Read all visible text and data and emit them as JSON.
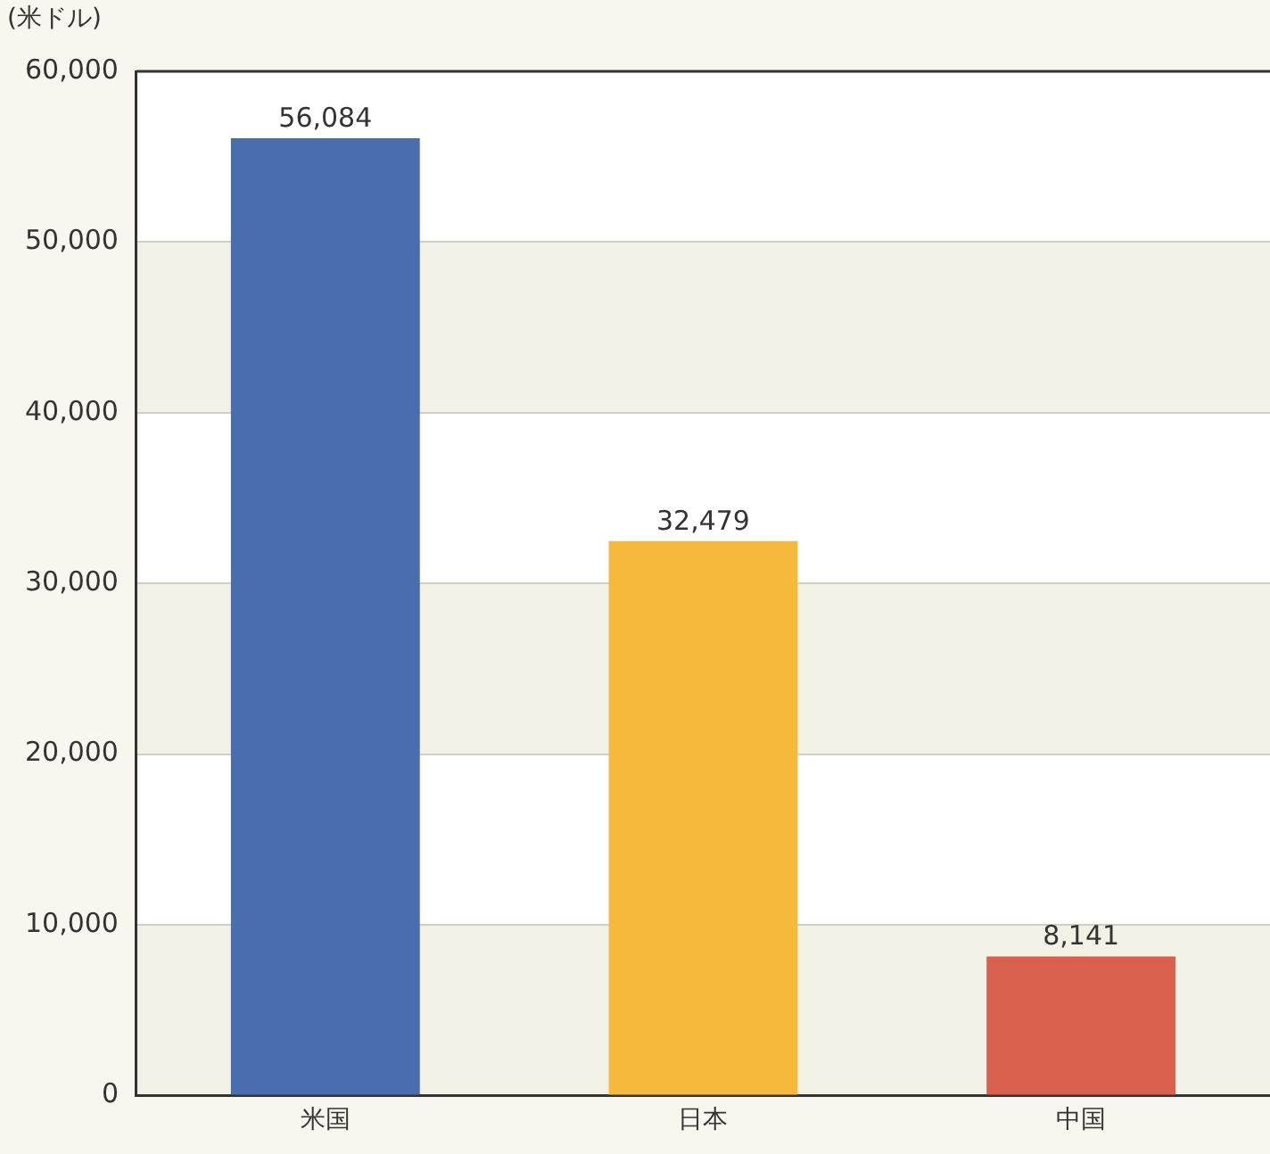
{
  "chart_data": {
    "type": "bar",
    "ylabel": "(米ドル)",
    "categories": [
      "米国",
      "日本",
      "中国"
    ],
    "values": [
      56084,
      32479,
      8141
    ],
    "value_labels": [
      "56,084",
      "32,479",
      "8,141"
    ],
    "colors": [
      "#4a6db0",
      "#f6b93b",
      "#d9604c"
    ],
    "ylim": [
      0,
      60000
    ],
    "yticks": [
      0,
      {
        "value": 10000,
        "label": "10,000"
      },
      {
        "value": 20000,
        "label": "20,000"
      },
      {
        "value": 30000,
        "label": "30,000"
      },
      {
        "value": 40000,
        "label": "40,000"
      },
      {
        "value": 50000,
        "label": "50,000"
      },
      {
        "value": 60000,
        "label": "60,000"
      }
    ],
    "grid": "y",
    "legend": false
  }
}
